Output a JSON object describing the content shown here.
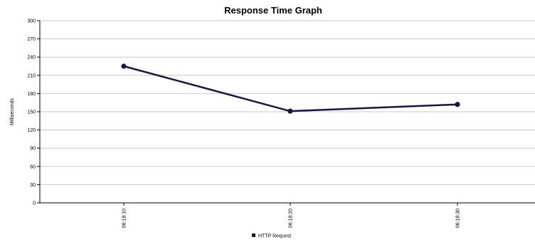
{
  "chart_data": {
    "type": "line",
    "title": "Response Time Graph",
    "xlabel": "",
    "ylabel": "Milliseconds",
    "categories": [
      "06:18:10",
      "06:18:20",
      "06:18:30"
    ],
    "series": [
      {
        "name": "HTTP Request",
        "values": [
          225,
          151,
          162
        ],
        "color": "#1a1446"
      }
    ],
    "ylim": [
      0,
      300
    ],
    "yticks": [
      0,
      30,
      60,
      90,
      120,
      150,
      180,
      210,
      240,
      270,
      300
    ],
    "grid": true,
    "grid_color": "#c8c8c8",
    "legend_position": "bottom"
  }
}
